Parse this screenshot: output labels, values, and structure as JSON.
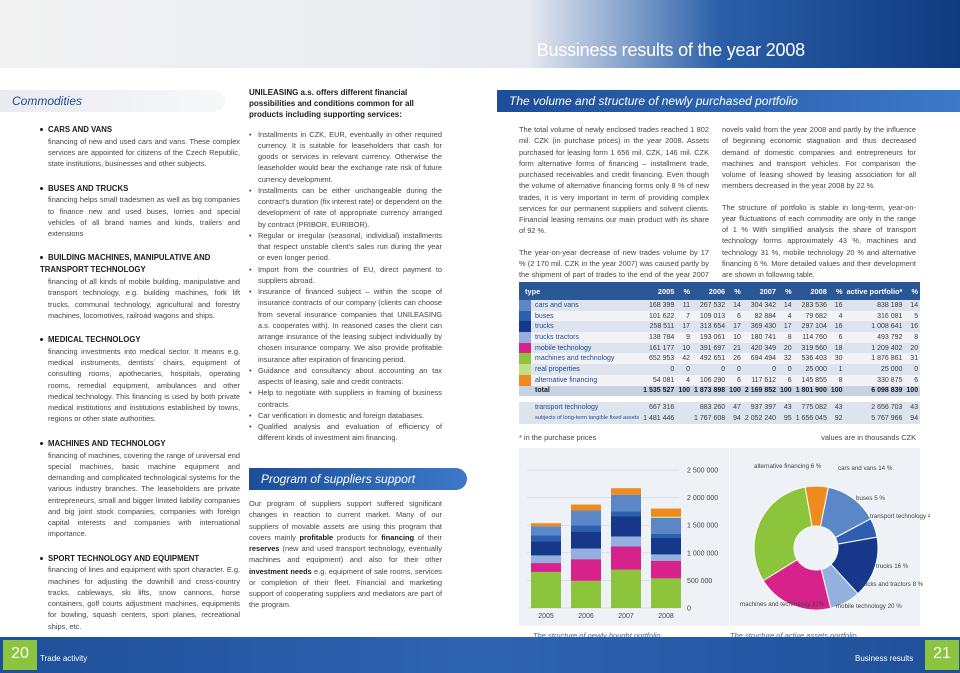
{
  "header": {
    "title": "Bussiness results of the year 2008"
  },
  "commodities": {
    "heading": "Commodities",
    "items": [
      {
        "title": "CARS AND VANS",
        "text": "financing of new and used cars and vans. These complex services are appointed for citizens of the Czech Republic, state institutions, businesses and other subjects."
      },
      {
        "title": "BUSES AND TRUCKS",
        "text": "financing helps small tradesmen as well as big companies to finance new and used buses, lorries and special vehicles of all brand names and kinds, trailers and extensions"
      },
      {
        "title": "BUILDING MACHINES, MANIPULATIVE AND TRANSPORT TECHNOLOGY",
        "text": "financing of all kinds of mobile building, manipulative and transport technology, e.g. building machines, fork lift trucks, communal technology, agricultural and forestry machines, locomotives, railroad wagons and ships."
      },
      {
        "title": "MEDICAL TECHNOLOGY",
        "text": "financing investments into medical sector. It means e.g. medical instruments, dentists´ chairs, equipment of consulting rooms, apothecaries, hospitals, operating rooms, remedial equipment, ambulances and other medical technology. This financing is used by both private medical institutions and institutions established by towns, regions or other state authorities."
      },
      {
        "title": "MACHINES AND TECHNOLOGY",
        "text": "financing of machines, covering the range of universal end special machines, basic machine equipment and demanding and complicated technological systems for the various industry branches. The leaseholders are private entrepreneurs, small and bigger limited liability companies and big joint stock companies, companies with foreign capital interests and companies with international importance."
      },
      {
        "title": "SPORT TECHNOLOGY AND EQUIPMENT",
        "text": "financing of lines and equipment with sport character. E.g. machines for adjusting the downhill and cross-country tracks, cableways, ski lifts, snow cannons, horse containers, golf courts adjustment machines, equipments for bowling, squash centers, sport planes, recreational ships, etc."
      }
    ]
  },
  "conditions": {
    "lead": "UNILEASING a.s. offers different financial possibilities and conditions common for all products including supporting services:",
    "bullets": [
      "Installments in CZK, EUR, eventually in other required currency. It is suitable for leaseholders that cash for goods or services in relevant currency. Otherwise the leaseholder would bear the exchange rate risk of future currency development.",
      "Installments can be either unchangeable during the contract's duration (fix interest rate) or dependent on the development of rate of appropriate currency arranged by contract (PRIBOR, EURIBOR).",
      "Regular or irregular (seasonal, individual) installments that respect unstable client's sales run during the year or even longer period.",
      "Import from the countries of EU, direct payment to suppliers abroad.",
      "Insurance of financed subject – within the scope of insurance contracts of our company (clients can choose from several insurance companies that UNILEASING a.s. cooperates with). In reasoned cases the client can arrange insurance of the leasing subject individually by chosen insurance company. We also provide profitable insurance after expiration of financing period.",
      "Guidance and consultancy about accounting an tax aspects of leasing, sale and credit contracts.",
      "Help to negotiate with suppliers in framing of business contracts.",
      "Car verification in domestic and foreign databases.",
      "Qualified analysis and evaluation of efficiency of different kinds of investment aim financing."
    ]
  },
  "suppliers": {
    "heading": "Program of suppliers support",
    "p1": "Our program of suppliers support suffered significant changes in reaction to current market. Many of our suppliers of movable assets are using this program that covers mainly ",
    "b1": "profitable",
    "p2": " products for ",
    "b2": "financing",
    "p3": " of their ",
    "b3": "reserves",
    "p4": " (new and used transport technology, eventually machines and equipment) and also for their other ",
    "b4": "investment needs",
    "p5": " e.g. equipment of sale rooms, services or completion of their fleet. Financial and marketing support of cooperating suppliers and mediators are part of the program."
  },
  "volume": {
    "heading": "The volume and structure of newly purchased portfolio",
    "col1_p1": "The total volume of newly enclosed trades reached 1 802 mil. CZK (in purchase prices) in the year 2008. Assets purchased for leasing form 1 656 mil. CZK, 146 mil. CZK form alternative forms of financing – installment trade, purchased receivables and credit financing. Even though the volume of alternative financing forms only 8 % of new trades, it is very important in term of providing complex services for our permanent suppliers and solvent clients. Financial leasing remains our main product with its share of 92 %.",
    "col1_p2": "The year-on-year decrease of new trades volume by 17 % (2 170 mil. CZK in the year 2007) was caused partly by the shipment of part of trades to the end of the year 2007 thanks to tax",
    "col2_p1": "novels valid from the year 2008 and partly by the influence of beginning economic stagnation and thus decreased demand of domestic companies and entrepreneurs for machines and transport vehicles. For comparison the volume of leasing showed by leasing association for all members decreased in the year 2008 by 22 %.",
    "col2_p2": "The structure of portfolio is stable in long-term, year-on-year fluctuations of each commodity are only in the range of 1 % With simplified analysis the share of transport technology forms approximately 43 %, machines and technology 31 %, mobile technology 20 % and alternative financing 6 %. More detailed values and their development are shown in following table."
  },
  "table": {
    "headers": [
      "type",
      "2005",
      "%",
      "2006",
      "%",
      "2007",
      "%",
      "2008",
      "%",
      "active portfolio*",
      "%"
    ],
    "rows": [
      {
        "swatch": "#5b87c8",
        "label": "cars and vans",
        "cells": [
          "168 399",
          "11",
          "267 532",
          "14",
          "304 342",
          "14",
          "283 536",
          "16",
          "838 189",
          "14"
        ]
      },
      {
        "swatch": "#2d5fb0",
        "label": "buses",
        "cells": [
          "101 622",
          "7",
          "109 013",
          "6",
          "82 884",
          "4",
          "79 682",
          "4",
          "316 081",
          "5"
        ]
      },
      {
        "swatch": "#16378a",
        "label": "trucks",
        "cells": [
          "258 511",
          "17",
          "313 654",
          "17",
          "369 430",
          "17",
          "297 104",
          "16",
          "1 008 641",
          "16"
        ]
      },
      {
        "swatch": "#93b0de",
        "label": "trucks tractors",
        "cells": [
          "138 784",
          "9",
          "193 061",
          "10",
          "180 741",
          "8",
          "114 760",
          "6",
          "493 792",
          "8"
        ]
      },
      {
        "swatch": "#d7228c",
        "label": "mobile technology",
        "cells": [
          "161 177",
          "10",
          "391 697",
          "21",
          "420 349",
          "20",
          "319 560",
          "18",
          "1 209 402",
          "20"
        ]
      },
      {
        "swatch": "#8cc43c",
        "label": "machines and technology",
        "cells": [
          "652 953",
          "42",
          "492 651",
          "26",
          "694 494",
          "32",
          "536 403",
          "30",
          "1 876 861",
          "31"
        ]
      },
      {
        "swatch": "#bfe08a",
        "label": "real properties",
        "cells": [
          "0",
          "0",
          "0",
          "0",
          "0",
          "0",
          "25 000",
          "1",
          "25 000",
          "0"
        ]
      },
      {
        "swatch": "#ee8a1e",
        "label": "alternative financing",
        "cells": [
          "54 081",
          "4",
          "106 290",
          "6",
          "117 612",
          "6",
          "145 855",
          "8",
          "330 875",
          "6"
        ]
      }
    ],
    "total": {
      "label": "total",
      "cells": [
        "1 535 527",
        "100",
        "1 873 898",
        "100",
        "2 169 852",
        "100",
        "1 801 900",
        "100",
        "6 098 839",
        "100"
      ]
    },
    "extra": [
      {
        "label": "transport technology",
        "cells": [
          "667 316",
          "",
          "883 260",
          "47",
          "937 397",
          "43",
          "775 082",
          "43",
          "2 656 703",
          "43"
        ]
      },
      {
        "label": "subjects of long-term tangible fixed assets",
        "cells": [
          "1 481 446",
          "",
          "1 767 608",
          "94",
          "2 052 240",
          "95",
          "1 656 045",
          "92",
          "5 767 966",
          "94"
        ]
      }
    ],
    "footnote": "* in the purchase prices",
    "units_note": "values are in thousands CZK"
  },
  "chart_data": [
    {
      "type": "bar",
      "stacked": true,
      "caption": "The structure of newly bought portfolio",
      "categories": [
        "2005",
        "2006",
        "2007",
        "2008"
      ],
      "ylim": [
        0,
        2500000
      ],
      "yticks": [
        "2 500 000",
        "2 000 000",
        "1 500 000",
        "1 000 000",
        "500 000",
        "0"
      ],
      "series": [
        {
          "name": "machines and technology",
          "color": "#8cc43c",
          "values": [
            652953,
            492651,
            694494,
            536403
          ]
        },
        {
          "name": "mobile technology",
          "color": "#d7228c",
          "values": [
            161177,
            391697,
            420349,
            319560
          ]
        },
        {
          "name": "trucks tractors",
          "color": "#93b0de",
          "values": [
            138784,
            193061,
            180741,
            114760
          ]
        },
        {
          "name": "trucks",
          "color": "#16378a",
          "values": [
            258511,
            313654,
            369430,
            297104
          ]
        },
        {
          "name": "buses",
          "color": "#2d5fb0",
          "values": [
            101622,
            109013,
            82884,
            79682
          ]
        },
        {
          "name": "cars and vans",
          "color": "#5b87c8",
          "values": [
            168399,
            267532,
            304342,
            283536
          ]
        },
        {
          "name": "real properties",
          "color": "#bfe08a",
          "values": [
            0,
            0,
            0,
            25000
          ]
        },
        {
          "name": "alternative financing",
          "color": "#ee8a1e",
          "values": [
            54081,
            106290,
            117612,
            145855
          ]
        }
      ]
    },
    {
      "type": "pie",
      "donut": true,
      "caption": "The structure of active assets portfolio",
      "slices": [
        {
          "label": "cars and vans 14 %",
          "value": 14,
          "color": "#5b87c8"
        },
        {
          "label": "buses 5 %",
          "value": 5,
          "color": "#2d5fb0"
        },
        {
          "label": "transport technology 43 %",
          "value": 0,
          "color": "#16378a"
        },
        {
          "label": "trucks 16 %",
          "value": 16,
          "color": "#16378a"
        },
        {
          "label": "trucks and tractors 8 %",
          "value": 8,
          "color": "#93b0de"
        },
        {
          "label": "mobile technology 20 %",
          "value": 20,
          "color": "#d7228c"
        },
        {
          "label": "machines and technology 31%",
          "value": 31,
          "color": "#8cc43c"
        },
        {
          "label": "alternative financing 6 %",
          "value": 6,
          "color": "#ee8a1e"
        }
      ]
    }
  ],
  "footer": {
    "left_page": "20",
    "left_label": "Trade activity",
    "right_label": "Business results",
    "right_page": "21"
  }
}
